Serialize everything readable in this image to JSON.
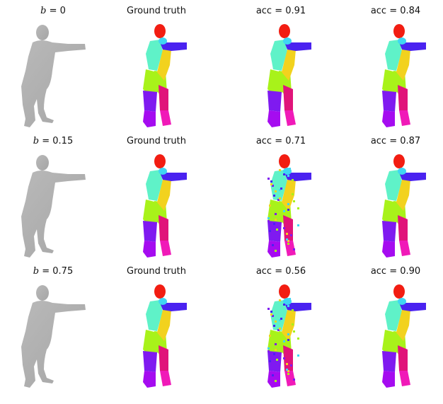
{
  "rows": [
    {
      "b_label": "b",
      "b_eq": " = 0",
      "gt_title": "Ground truth",
      "pred1_title": "acc = 0.91",
      "pred2_title": "acc = 0.84"
    },
    {
      "b_label": "b",
      "b_eq": " = 0.15",
      "gt_title": "Ground truth",
      "pred1_title": "acc = 0.71",
      "pred2_title": "acc = 0.87"
    },
    {
      "b_label": "b",
      "b_eq": " = 0.75",
      "gt_title": "Ground truth",
      "pred1_title": "acc = 0.56",
      "pred2_title": "acc = 0.90"
    }
  ],
  "colors": {
    "depth_dark": "#8f8f8f",
    "depth_light": "#cfcfcf",
    "head": "#f21d12",
    "torso_upper": "#5ff2c8",
    "torso_right": "#f2d21e",
    "arm_left": "#4a22f0",
    "hip": "#a8f21a",
    "thigh_left": "#7f1af0",
    "thigh_right": "#e0147a",
    "shin_left": "#a50cf0",
    "shin_right": "#f01ab8",
    "shoulder": "#3fd6f2"
  }
}
